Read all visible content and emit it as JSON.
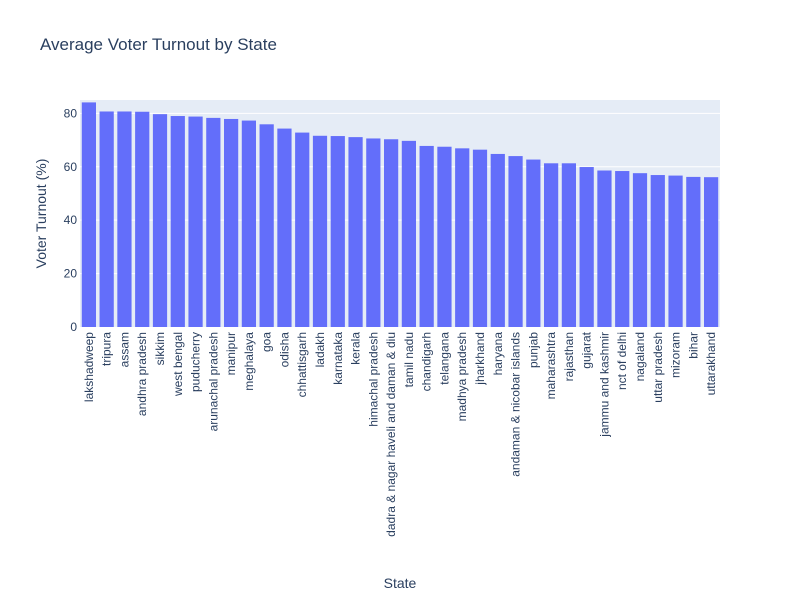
{
  "chart_data": {
    "type": "bar",
    "title": "Average Voter Turnout by State",
    "xlabel": "State",
    "ylabel": "Voter Turnout (%)",
    "ylim": [
      0,
      85
    ],
    "yticks": [
      0,
      20,
      40,
      60,
      80
    ],
    "grid": true,
    "colors": {
      "bar": "#636efa",
      "plot_bg": "#e5ecf6",
      "grid": "#ffffff",
      "text": "#2a3f5f"
    },
    "categories": [
      "lakshadweep",
      "tripura",
      "assam",
      "andhra pradesh",
      "sikkim",
      "west bengal",
      "puducherry",
      "arunachal pradesh",
      "manipur",
      "meghalaya",
      "goa",
      "odisha",
      "chhattisgarh",
      "ladakh",
      "karnataka",
      "kerala",
      "himachal pradesh",
      "dadra & nagar haveli and daman & diu",
      "tamil nadu",
      "chandigarh",
      "telangana",
      "madhya pradesh",
      "jharkhand",
      "haryana",
      "andaman & nicobar islands",
      "punjab",
      "maharashtra",
      "rajasthan",
      "gujarat",
      "jammu and kashmir",
      "nct of delhi",
      "nagaland",
      "uttar pradesh",
      "mizoram",
      "bihar",
      "uttarakhand"
    ],
    "values": [
      84.1,
      80.7,
      80.7,
      80.6,
      79.7,
      79.0,
      78.8,
      78.3,
      77.9,
      77.3,
      75.9,
      74.3,
      72.8,
      71.6,
      71.5,
      71.1,
      70.6,
      70.3,
      69.7,
      67.8,
      67.5,
      66.9,
      66.4,
      64.8,
      64.0,
      62.7,
      61.3,
      61.3,
      59.9,
      58.6,
      58.4,
      57.6,
      56.9,
      56.7,
      56.2,
      56.1
    ]
  }
}
